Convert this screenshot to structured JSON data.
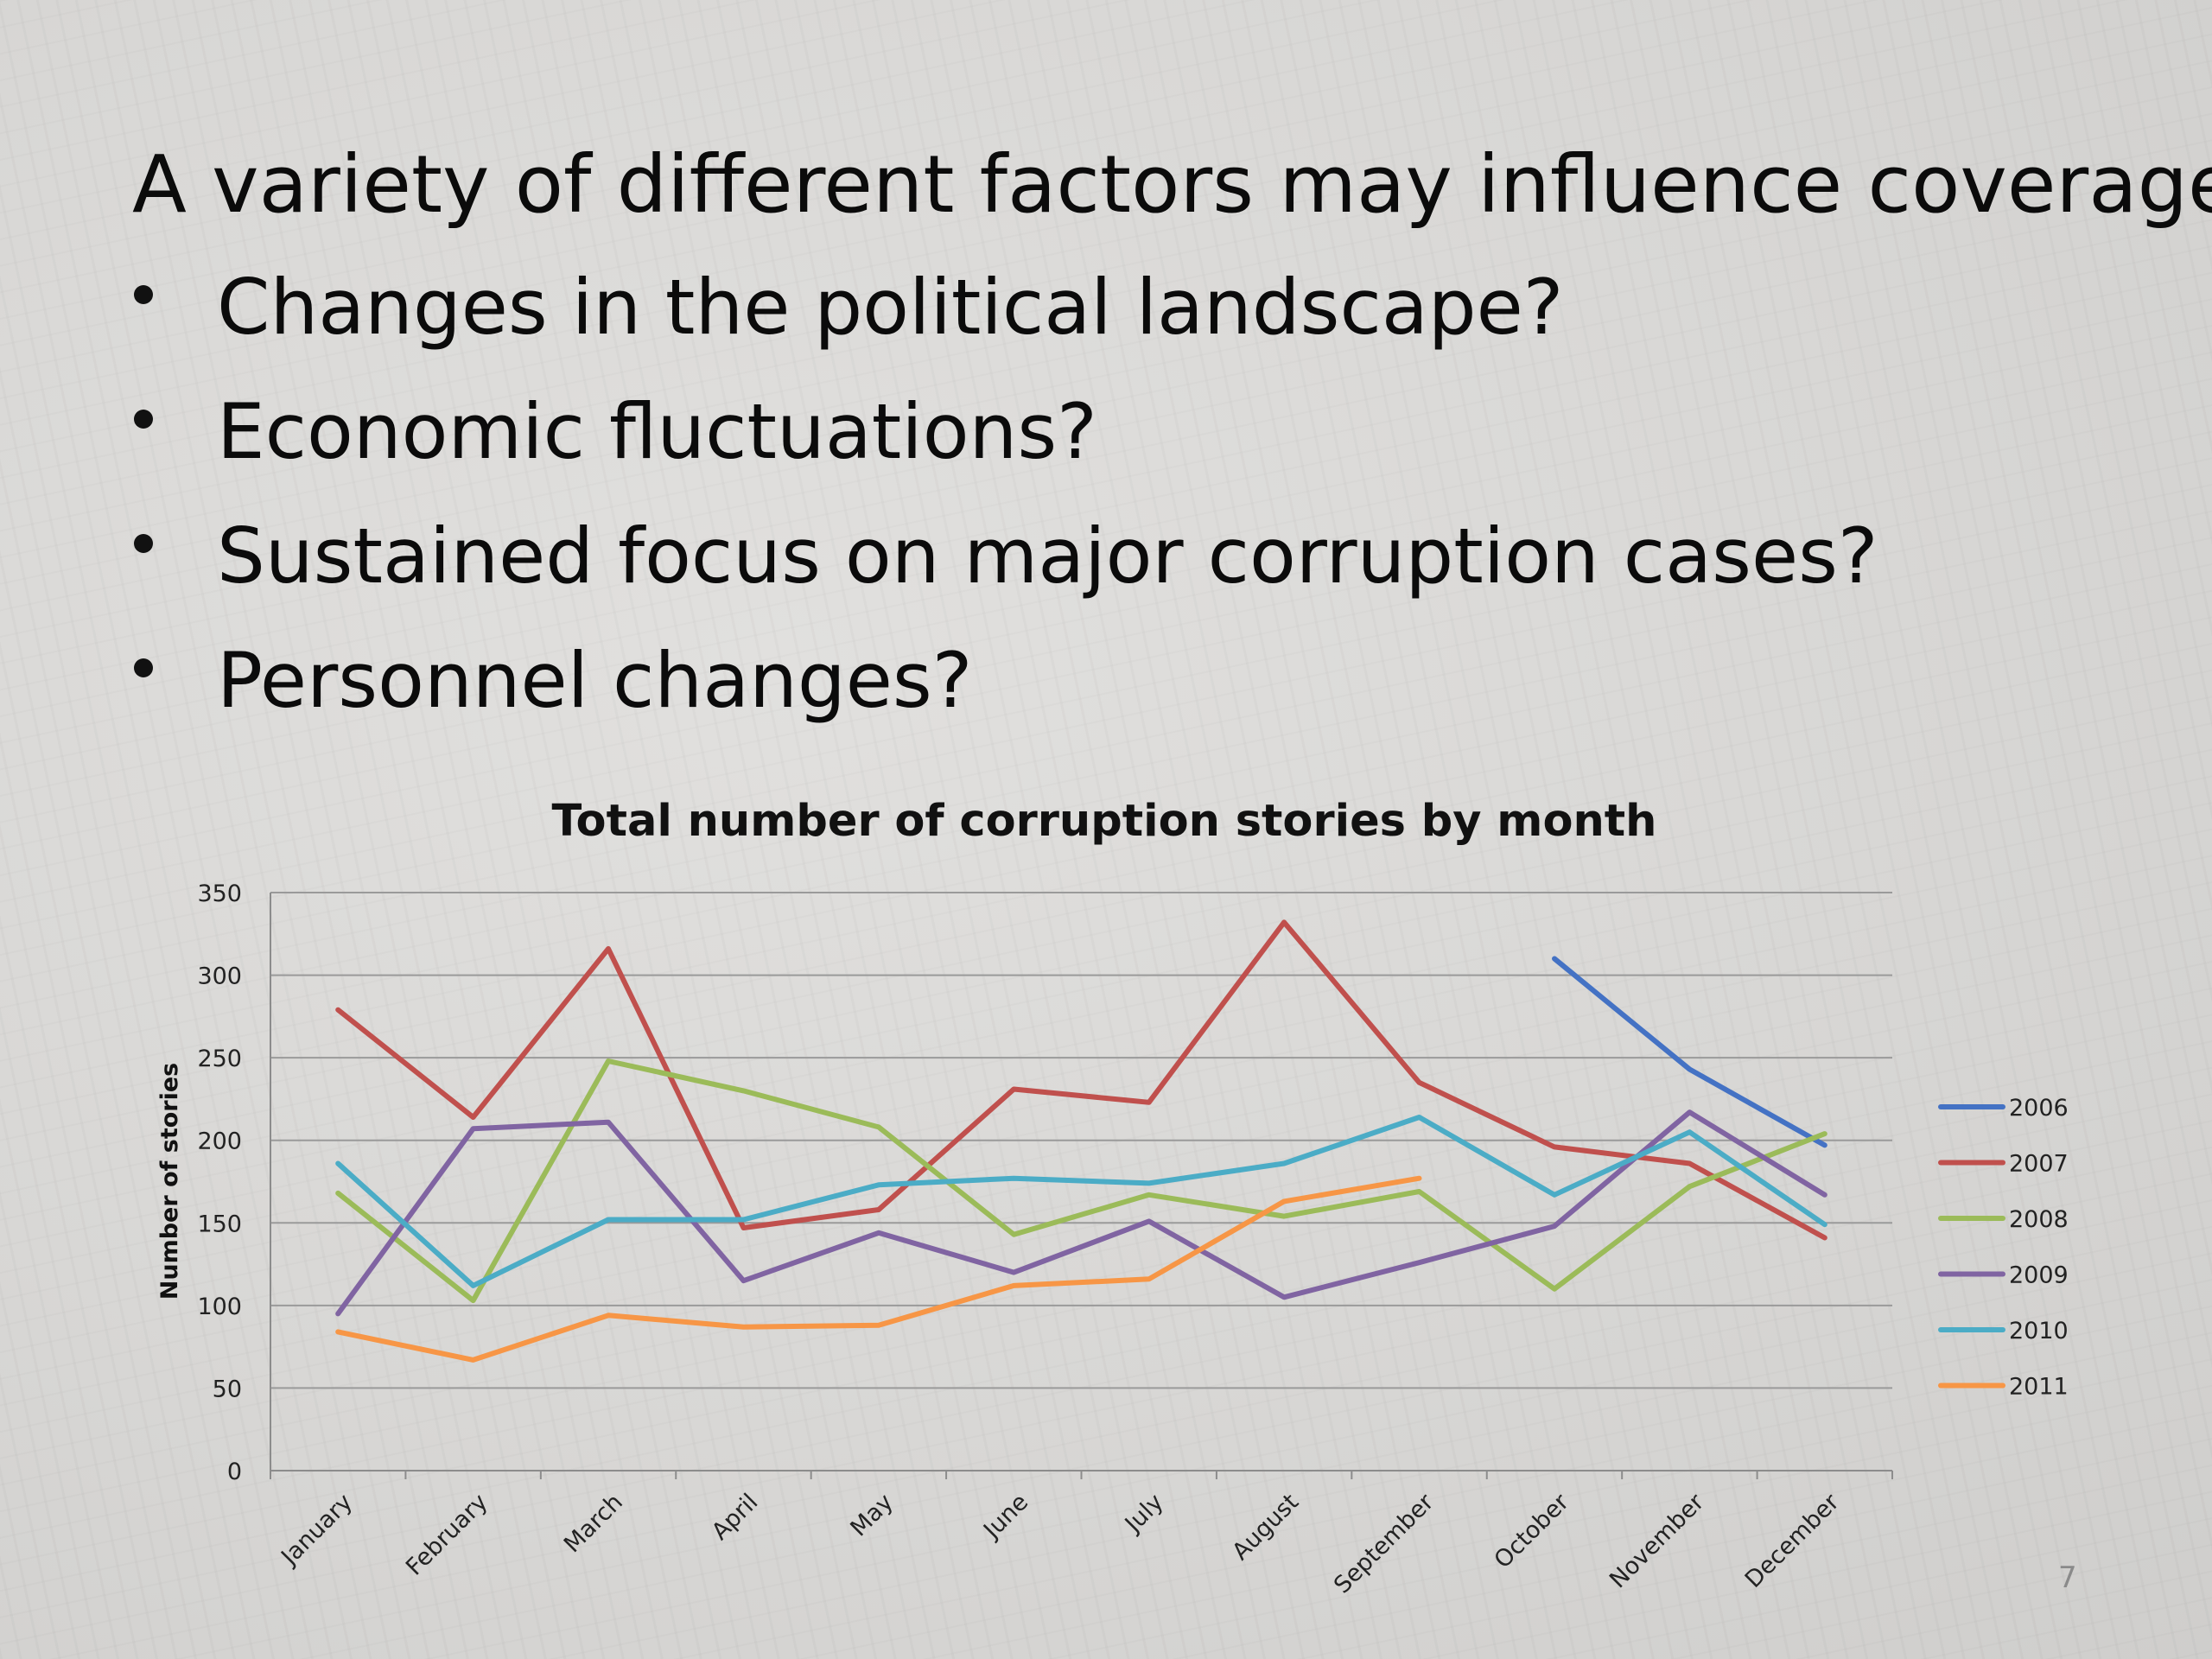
{
  "slide": {
    "title": "A variety of different factors may influence coverage.",
    "bullets": [
      "Changes in the political landscape?",
      "Economic fluctuations?",
      "Sustained focus on major corruption cases?",
      "Personnel changes?"
    ],
    "page_number": "7"
  },
  "chart_data": {
    "type": "line",
    "title": "Total number of corruption stories by month",
    "xlabel": "",
    "ylabel": "Number of stories",
    "ylim": [
      0,
      350
    ],
    "yticks": [
      0,
      50,
      100,
      150,
      200,
      250,
      300,
      350
    ],
    "grid": true,
    "legend_position": "right",
    "categories": [
      "January",
      "February",
      "March",
      "April",
      "May",
      "June",
      "July",
      "August",
      "September",
      "October",
      "November",
      "December"
    ],
    "series": [
      {
        "name": "2006",
        "color": "#4472C4",
        "values": [
          null,
          null,
          null,
          null,
          null,
          null,
          null,
          null,
          null,
          310,
          243,
          197
        ]
      },
      {
        "name": "2007",
        "color": "#C0504D",
        "values": [
          279,
          214,
          316,
          147,
          158,
          231,
          223,
          332,
          235,
          196,
          186,
          141
        ]
      },
      {
        "name": "2008",
        "color": "#9BBB59",
        "values": [
          168,
          103,
          248,
          230,
          208,
          143,
          167,
          154,
          169,
          110,
          172,
          204
        ]
      },
      {
        "name": "2009",
        "color": "#8064A2",
        "values": [
          95,
          207,
          211,
          115,
          144,
          120,
          151,
          105,
          126,
          148,
          217,
          167
        ]
      },
      {
        "name": "2010",
        "color": "#4BACC6",
        "values": [
          186,
          112,
          152,
          152,
          173,
          177,
          174,
          186,
          214,
          167,
          205,
          149
        ]
      },
      {
        "name": "2011",
        "color": "#F79646",
        "values": [
          84,
          67,
          94,
          87,
          88,
          112,
          116,
          163,
          177,
          null,
          null,
          null
        ]
      }
    ]
  }
}
